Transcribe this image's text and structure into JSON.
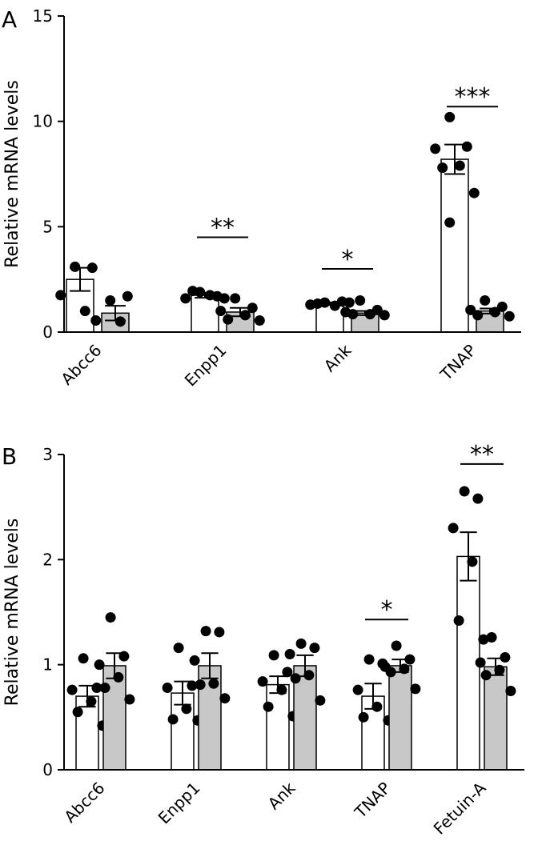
{
  "colors": {
    "control": "#ffffff",
    "treated": "#c8c8c8",
    "ink": "#000000"
  },
  "chart_data": [
    {
      "type": "bar",
      "panel": "A",
      "ylabel": "Relative mRNA levels",
      "ylim": [
        0,
        15
      ],
      "yticks": [
        0,
        5,
        10,
        15
      ],
      "categories": [
        "Abcc6",
        "Enpp1",
        "Ank",
        "TNAP"
      ],
      "series": [
        {
          "color": "#ffffff",
          "values": [
            2.5,
            1.75,
            1.35,
            8.2
          ],
          "errors": [
            0.55,
            0.12,
            0.06,
            0.7
          ],
          "points": [
            [
              3.1,
              3.05,
              1.75,
              1.0
            ],
            [
              1.9,
              1.7,
              1.6,
              1.75,
              1.95,
              1.6
            ],
            [
              1.4,
              1.45,
              1.3,
              1.25,
              1.35,
              1.4
            ],
            [
              10.2,
              8.8,
              8.7,
              7.9,
              7.8,
              6.6,
              5.2
            ]
          ]
        },
        {
          "color": "#c8c8c8",
          "values": [
            0.9,
            0.95,
            0.9,
            1.0
          ],
          "errors": [
            0.35,
            0.2,
            0.1,
            0.12
          ],
          "points": [
            [
              1.5,
              1.7,
              0.55,
              0.5
            ],
            [
              1.6,
              1.15,
              1.0,
              0.8,
              0.6,
              0.55
            ],
            [
              1.5,
              1.05,
              0.95,
              0.85,
              0.85,
              0.8
            ],
            [
              1.5,
              1.2,
              1.05,
              0.95,
              0.8,
              0.75
            ]
          ]
        }
      ],
      "significance": [
        {
          "category": "Enpp1",
          "label": "**",
          "y": 4.5
        },
        {
          "category": "Ank",
          "label": "*",
          "y": 3.0
        },
        {
          "category": "TNAP",
          "label": "***",
          "y": 10.7
        }
      ]
    },
    {
      "type": "bar",
      "panel": "B",
      "ylabel": "Relative mRNA levels",
      "ylim": [
        0,
        3
      ],
      "yticks": [
        0,
        1,
        2,
        3
      ],
      "categories": [
        "Abcc6",
        "Enpp1",
        "Ank",
        "TNAP",
        "Fetuin-A"
      ],
      "series": [
        {
          "color": "#ffffff",
          "values": [
            0.7,
            0.73,
            0.81,
            0.7,
            2.03
          ],
          "errors": [
            0.1,
            0.11,
            0.08,
            0.12,
            0.23
          ],
          "points": [
            [
              1.06,
              0.78,
              0.76,
              0.65,
              0.55,
              0.42
            ],
            [
              1.16,
              0.8,
              0.78,
              0.58,
              0.48,
              0.47
            ],
            [
              1.09,
              0.93,
              0.84,
              0.76,
              0.6,
              0.51
            ],
            [
              1.05,
              1.01,
              0.76,
              0.6,
              0.5,
              0.47
            ],
            [
              2.65,
              2.58,
              2.3,
              1.98,
              1.42,
              1.24
            ]
          ]
        },
        {
          "color": "#c8c8c8",
          "values": [
            0.99,
            0.99,
            0.99,
            0.99,
            0.98
          ],
          "errors": [
            0.12,
            0.12,
            0.1,
            0.06,
            0.08
          ],
          "points": [
            [
              1.45,
              1.08,
              1.0,
              0.88,
              0.78,
              0.67
            ],
            [
              1.32,
              1.31,
              1.04,
              0.82,
              0.81,
              0.68
            ],
            [
              1.2,
              1.16,
              1.1,
              0.9,
              0.87,
              0.66
            ],
            [
              1.18,
              1.05,
              0.98,
              0.96,
              0.93,
              0.77
            ],
            [
              1.26,
              1.07,
              1.02,
              0.95,
              0.9,
              0.75
            ]
          ]
        }
      ],
      "significance": [
        {
          "category": "TNAP",
          "label": "*",
          "y": 1.43
        },
        {
          "category": "Fetuin-A",
          "label": "**",
          "y": 2.91
        }
      ]
    }
  ]
}
